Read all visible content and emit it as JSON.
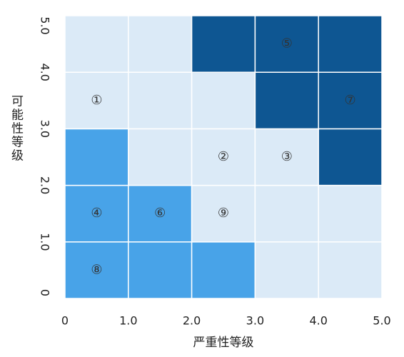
{
  "chart_data": {
    "type": "heatmap",
    "xlabel": "严重性等级",
    "ylabel": "可能性等级",
    "xlim": [
      0,
      5
    ],
    "ylim": [
      0,
      5
    ],
    "xticks": [
      0,
      {
        "value": 1,
        "label": "1.0"
      },
      {
        "value": 2,
        "label": "2.0"
      },
      {
        "value": 3,
        "label": "3.0"
      },
      {
        "value": 4,
        "label": "4.0"
      },
      {
        "value": 5,
        "label": "5.0"
      }
    ],
    "yticks": [
      0,
      {
        "value": 1,
        "label": "1.0"
      },
      {
        "value": 2,
        "label": "2.0"
      },
      {
        "value": 3,
        "label": "3.0"
      },
      {
        "value": 4,
        "label": "4.0"
      },
      {
        "value": 5,
        "label": "5.0"
      }
    ],
    "cell_colors": [
      [
        "#48a3e8",
        "#48a3e8",
        "#48a3e8",
        "#dbeaf7",
        "#dbeaf7"
      ],
      [
        "#48a3e8",
        "#48a3e8",
        "#dbeaf7",
        "#dbeaf7",
        "#dbeaf7"
      ],
      [
        "#48a3e8",
        "#dbeaf7",
        "#dbeaf7",
        "#dbeaf7",
        "#0e5692"
      ],
      [
        "#dbeaf7",
        "#dbeaf7",
        "#dbeaf7",
        "#0e5692",
        "#0e5692"
      ],
      [
        "#dbeaf7",
        "#dbeaf7",
        "#0e5692",
        "#0e5692",
        "#0e5692"
      ]
    ],
    "cell_labels": [
      [
        "⑧",
        null,
        null,
        null,
        null
      ],
      [
        "④",
        "⑥",
        "⑨",
        null,
        null
      ],
      [
        null,
        null,
        "②",
        "③",
        null
      ],
      [
        "①",
        null,
        null,
        null,
        "⑦"
      ],
      [
        null,
        null,
        null,
        "⑤",
        null
      ]
    ]
  }
}
